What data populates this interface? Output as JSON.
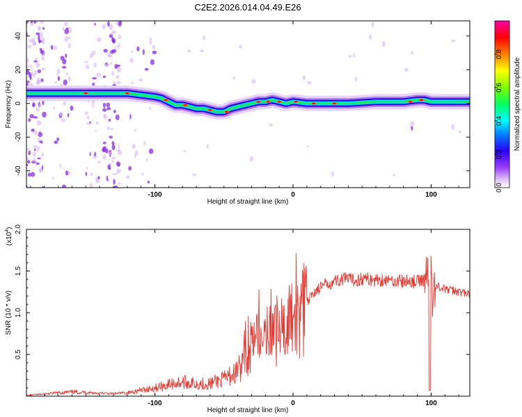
{
  "figure": {
    "title": "C2E2.2026.014.04.49.E26"
  },
  "chart_data": [
    {
      "type": "heatmap",
      "title": "C2E2.2026.014.04.49.E26",
      "xlabel": "Height of straight line (km)",
      "ylabel": "Frequency (Hz)",
      "xlim": [
        -193,
        128
      ],
      "ylim": [
        -50,
        49
      ],
      "x_ticks": [
        -100,
        0,
        100
      ],
      "y_ticks": [
        40,
        20,
        0,
        -20,
        -40
      ],
      "x_tick_labels": [
        "-100",
        "0",
        "100"
      ],
      "y_tick_labels": [
        "40",
        "20",
        "0",
        "-20",
        "-40"
      ],
      "colorbar": {
        "label": "Normalized spectral amplitude",
        "range": [
          0,
          1
        ],
        "ticks": [
          0.0,
          0.2,
          0.4,
          0.6,
          0.8
        ],
        "tick_labels": [
          "0.0",
          "0.2",
          "0.4",
          "0.6",
          "0.8"
        ],
        "colormap": [
          "#ffffff",
          "#c9a0f0",
          "#7b00ff",
          "#0000ff",
          "#00ffff",
          "#00ff00",
          "#ffff00",
          "#ff8000",
          "#ff0000",
          "#ff00aa"
        ]
      },
      "ridge_centerline": {
        "x": [
          -193,
          -180,
          -160,
          -140,
          -130,
          -120,
          -110,
          -100,
          -95,
          -90,
          -85,
          -80,
          -75,
          -70,
          -65,
          -60,
          -55,
          -50,
          -45,
          -40,
          -35,
          -30,
          -25,
          -20,
          -15,
          -10,
          -5,
          0,
          10,
          20,
          40,
          60,
          80,
          90,
          95,
          100,
          110,
          128
        ],
        "y": [
          6,
          6,
          6,
          6,
          6,
          6,
          5,
          4,
          3,
          1,
          -1,
          -1,
          -2,
          -3,
          -3,
          -4,
          -5,
          -5,
          -3,
          -2,
          -1,
          0,
          1,
          1,
          2,
          1,
          0,
          1,
          0,
          0,
          0,
          1,
          1,
          2,
          2,
          1,
          1,
          1
        ]
      },
      "ridge_peaks_red": [
        {
          "x": -150,
          "y": 6
        },
        {
          "x": -120,
          "y": 6
        },
        {
          "x": -92,
          "y": 2
        },
        {
          "x": -78,
          "y": -1
        },
        {
          "x": -60,
          "y": -4
        },
        {
          "x": -48,
          "y": -5
        },
        {
          "x": -25,
          "y": 1
        },
        {
          "x": -18,
          "y": 1
        },
        {
          "x": -10,
          "y": 1
        },
        {
          "x": 2,
          "y": 1
        },
        {
          "x": 15,
          "y": 0
        },
        {
          "x": 30,
          "y": 0
        },
        {
          "x": 85,
          "y": 1
        },
        {
          "x": 93,
          "y": 2
        }
      ]
    },
    {
      "type": "line",
      "xlabel": "Height of straight line (km)",
      "ylabel": "SNR (10 * v/v)",
      "y_scale_label": "(x10",
      "y_scale_exponent": "4",
      "y_scale_close": ")",
      "xlim": [
        -193,
        128
      ],
      "ylim": [
        0,
        20000
      ],
      "x_ticks": [
        -100,
        0,
        100
      ],
      "y_ticks": [
        5000,
        10000,
        15000,
        20000
      ],
      "x_tick_labels": [
        "-100",
        "0",
        "100"
      ],
      "y_tick_labels": [
        "0.5",
        "1.0",
        "1.5",
        "2.0"
      ],
      "color": "#e8352e",
      "x": [
        -193,
        -180,
        -170,
        -160,
        -150,
        -140,
        -130,
        -120,
        -110,
        -100,
        -90,
        -80,
        -70,
        -60,
        -55,
        -50,
        -45,
        -40,
        -35,
        -30,
        -25,
        -20,
        -15,
        -10,
        -5,
        0,
        5,
        10,
        15,
        20,
        25,
        30,
        35,
        40,
        45,
        50,
        55,
        60,
        65,
        70,
        75,
        80,
        85,
        90,
        95,
        98,
        99,
        100,
        101,
        102,
        105,
        110,
        115,
        120,
        128
      ],
      "values": [
        100,
        250,
        400,
        500,
        450,
        350,
        300,
        400,
        700,
        1000,
        1400,
        1700,
        1500,
        1500,
        1800,
        2000,
        2500,
        3000,
        4500,
        6000,
        6500,
        7000,
        7500,
        8000,
        8500,
        9000,
        10000,
        11000,
        12500,
        13000,
        13500,
        13800,
        14000,
        14000,
        13900,
        14100,
        14000,
        13900,
        14000,
        13800,
        13900,
        13700,
        13800,
        13700,
        14000,
        15000,
        700,
        16000,
        11500,
        13000,
        13200,
        12800,
        12700,
        12500,
        12200
      ]
    }
  ]
}
